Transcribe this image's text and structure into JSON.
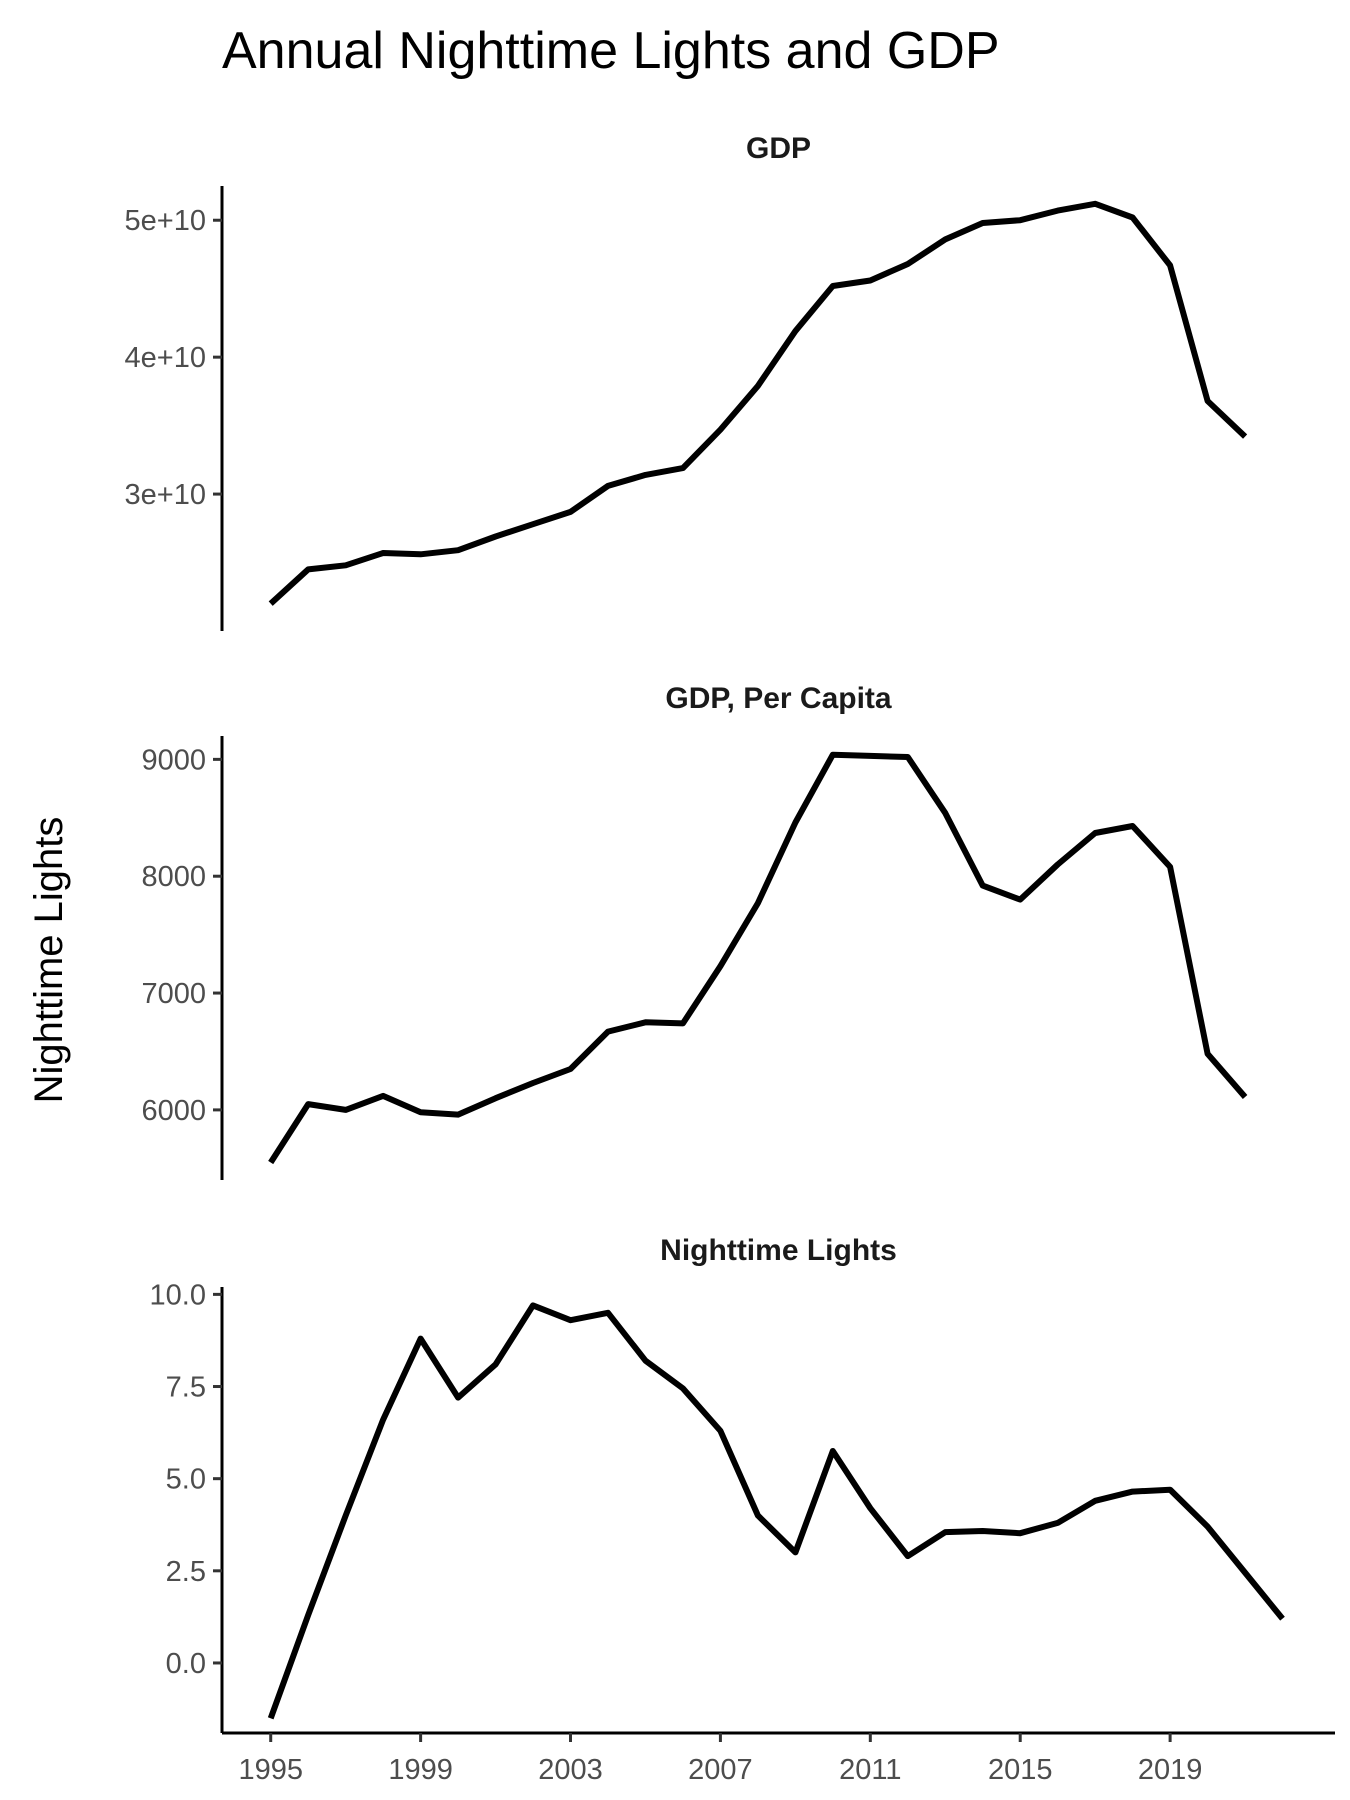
{
  "chart_data": {
    "type": "line",
    "title": "Annual Nighttime Lights and GDP",
    "ylabel": "Nighttime Lights",
    "xlabel": "",
    "x_ticks": [
      1995,
      1999,
      2003,
      2007,
      2011,
      2015,
      2019
    ],
    "xlim": [
      1993.7,
      2023.4
    ],
    "line_color": "#000000",
    "grid": false,
    "panels": [
      {
        "name": "GDP",
        "ylim": [
          20000000000,
          52500000000
        ],
        "y_ticks": [
          30000000000,
          40000000000,
          50000000000
        ],
        "y_tick_labels": [
          "3e+10",
          "4e+10",
          "5e+10"
        ],
        "x": [
          1995,
          1996,
          1997,
          1998,
          1999,
          2000,
          2001,
          2002,
          2003,
          2004,
          2005,
          2006,
          2007,
          2008,
          2009,
          2010,
          2011,
          2012,
          2013,
          2014,
          2015,
          2016,
          2017,
          2018,
          2019,
          2020,
          2021
        ],
        "values": [
          22000000000,
          24500000000,
          24800000000,
          25700000000,
          25600000000,
          25900000000,
          26900000000,
          27800000000,
          28700000000,
          30600000000,
          31400000000,
          31900000000,
          34700000000,
          37900000000,
          41900000000,
          45200000000,
          45600000000,
          46800000000,
          48600000000,
          49800000000,
          50000000000,
          50700000000,
          51200000000,
          50200000000,
          46700000000,
          36800000000,
          34200000000
        ]
      },
      {
        "name": "GDP, Per Capita",
        "ylim": [
          5400,
          9200
        ],
        "y_ticks": [
          6000,
          7000,
          8000,
          9000
        ],
        "y_tick_labels": [
          "6000",
          "7000",
          "8000",
          "9000"
        ],
        "x": [
          1995,
          1996,
          1997,
          1998,
          1999,
          2000,
          2001,
          2002,
          2003,
          2004,
          2005,
          2006,
          2007,
          2008,
          2009,
          2010,
          2011,
          2012,
          2013,
          2014,
          2015,
          2016,
          2017,
          2018,
          2019,
          2020,
          2021
        ],
        "values": [
          5550,
          6050,
          6000,
          6120,
          5980,
          5960,
          6100,
          6230,
          6350,
          6670,
          6750,
          6740,
          7230,
          7770,
          8460,
          9040,
          9030,
          9020,
          8540,
          7920,
          7800,
          8100,
          8370,
          8430,
          8080,
          6480,
          6110
        ]
      },
      {
        "name": "Nighttime Lights",
        "ylim": [
          -1.9,
          10.2
        ],
        "y_ticks": [
          0.0,
          2.5,
          5.0,
          7.5,
          10.0
        ],
        "y_tick_labels": [
          "0.0",
          "2.5",
          "5.0",
          "7.5",
          "10.0"
        ],
        "x": [
          1995,
          1996,
          1997,
          1998,
          1999,
          2000,
          2001,
          2002,
          2003,
          2004,
          2005,
          2006,
          2007,
          2008,
          2009,
          2010,
          2011,
          2012,
          2013,
          2014,
          2015,
          2016,
          2017,
          2018,
          2019,
          2020,
          2021,
          2022
        ],
        "values": [
          -1.5,
          1.3,
          4.0,
          6.6,
          8.8,
          7.2,
          8.1,
          9.7,
          9.3,
          9.5,
          8.2,
          7.45,
          6.3,
          4.0,
          3.0,
          5.75,
          4.2,
          2.9,
          3.55,
          3.58,
          3.52,
          3.8,
          4.4,
          4.65,
          4.7,
          3.7,
          2.45,
          1.2
        ]
      }
    ]
  }
}
